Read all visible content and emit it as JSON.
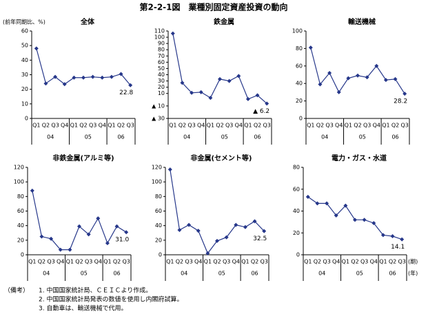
{
  "title": "第2-2-1図　業種別固定資産投資の動向",
  "unit_label": "(前年同期比、%)",
  "period_label": "(期)",
  "year_label": "(年)",
  "notes_head": "（備考）",
  "notes": [
    "1. 中国国家統計局、ＣＥＩＣより作成。",
    "2. 中国国家統計局発表の数値を使用し内閣府試算。",
    "3. 自動車は、輸送機械で代用。"
  ],
  "chart_data": [
    {
      "type": "line",
      "title": "全体",
      "color": "#26378a",
      "categories": [
        "Q1",
        "Q2",
        "Q3",
        "Q4",
        "Q1",
        "Q2",
        "Q3",
        "Q4",
        "Q1",
        "Q2",
        "Q3"
      ],
      "years": [
        "04",
        "05",
        "06"
      ],
      "values": [
        48,
        24,
        28.5,
        23.5,
        28,
        28,
        28.5,
        28,
        28.5,
        30.5,
        22.8
      ],
      "value_labels": [
        null,
        null,
        null,
        null,
        null,
        null,
        null,
        null,
        null,
        null,
        "22.8"
      ],
      "ylim": [
        0,
        60
      ],
      "yticks": [
        0,
        10,
        20,
        30,
        40,
        50,
        60
      ]
    },
    {
      "type": "line",
      "title": "鉄金属",
      "color": "#26378a",
      "categories": [
        "Q1",
        "Q2",
        "Q3",
        "Q4",
        "Q1",
        "Q2",
        "Q3",
        "Q4",
        "Q1",
        "Q2",
        "Q3"
      ],
      "years": [
        "04",
        "05",
        "06"
      ],
      "values": [
        106,
        27,
        11,
        12,
        3,
        33,
        30,
        38,
        1,
        7,
        -6.2
      ],
      "value_labels": [
        null,
        null,
        null,
        null,
        null,
        null,
        null,
        null,
        null,
        null,
        "▲ 6.2"
      ],
      "ylim": [
        -30,
        110
      ],
      "yticks": [
        {
          "value": -30,
          "label": "▲ 30"
        },
        {
          "value": -10,
          "label": "▲ 10"
        },
        10,
        20,
        30,
        40,
        50,
        60,
        70,
        80,
        90,
        100,
        110
      ]
    },
    {
      "type": "line",
      "title": "輸送機械",
      "color": "#26378a",
      "categories": [
        "Q1",
        "Q2",
        "Q3",
        "Q4",
        "Q1",
        "Q2",
        "Q3",
        "Q4",
        "Q1",
        "Q2",
        "Q3"
      ],
      "years": [
        "04",
        "05",
        "06"
      ],
      "values": [
        81,
        39,
        52,
        30,
        46,
        49,
        47,
        60,
        44,
        45,
        28.2
      ],
      "value_labels": [
        null,
        null,
        null,
        null,
        null,
        null,
        null,
        null,
        null,
        null,
        "28.2"
      ],
      "ylim": [
        0,
        100
      ],
      "yticks": [
        0,
        20,
        40,
        60,
        80,
        100
      ]
    },
    {
      "type": "line",
      "title": "非鉄金属(アルミ等)",
      "color": "#26378a",
      "categories": [
        "Q1",
        "Q2",
        "Q3",
        "Q4",
        "Q1",
        "Q2",
        "Q3",
        "Q4",
        "Q1",
        "Q2",
        "Q3"
      ],
      "years": [
        "04",
        "05",
        "06"
      ],
      "values": [
        88,
        25,
        22,
        7,
        7,
        39,
        28,
        50,
        16,
        39,
        31
      ],
      "value_labels": [
        null,
        null,
        null,
        null,
        null,
        null,
        null,
        null,
        null,
        null,
        "31.0"
      ],
      "ylim": [
        0,
        120
      ],
      "yticks": [
        0,
        20,
        40,
        60,
        80,
        100,
        120
      ]
    },
    {
      "type": "line",
      "title": "非金属(セメント等)",
      "color": "#26378a",
      "categories": [
        "Q1",
        "Q2",
        "Q3",
        "Q4",
        "Q1",
        "Q2",
        "Q3",
        "Q4",
        "Q1",
        "Q2",
        "Q3"
      ],
      "years": [
        "04",
        "05",
        "06"
      ],
      "values": [
        117,
        34,
        41,
        33,
        2,
        19,
        24,
        41,
        38,
        46,
        32.5
      ],
      "value_labels": [
        null,
        null,
        null,
        null,
        null,
        null,
        null,
        null,
        null,
        null,
        "32.5"
      ],
      "ylim": [
        0,
        120
      ],
      "yticks": [
        0,
        20,
        40,
        60,
        80,
        100,
        120
      ]
    },
    {
      "type": "line",
      "title": "電力・ガス・水道",
      "color": "#26378a",
      "categories": [
        "Q1",
        "Q2",
        "Q3",
        "Q4",
        "Q1",
        "Q2",
        "Q3",
        "Q4",
        "Q1",
        "Q2",
        "Q3"
      ],
      "years": [
        "04",
        "05",
        "06"
      ],
      "values": [
        53,
        47,
        47,
        36,
        45,
        32,
        32,
        29,
        18,
        17,
        14.1
      ],
      "value_labels": [
        null,
        null,
        null,
        null,
        null,
        null,
        null,
        null,
        null,
        null,
        "14.1"
      ],
      "ylim": [
        0,
        80
      ],
      "yticks": [
        0,
        20,
        40,
        60,
        80
      ]
    }
  ]
}
